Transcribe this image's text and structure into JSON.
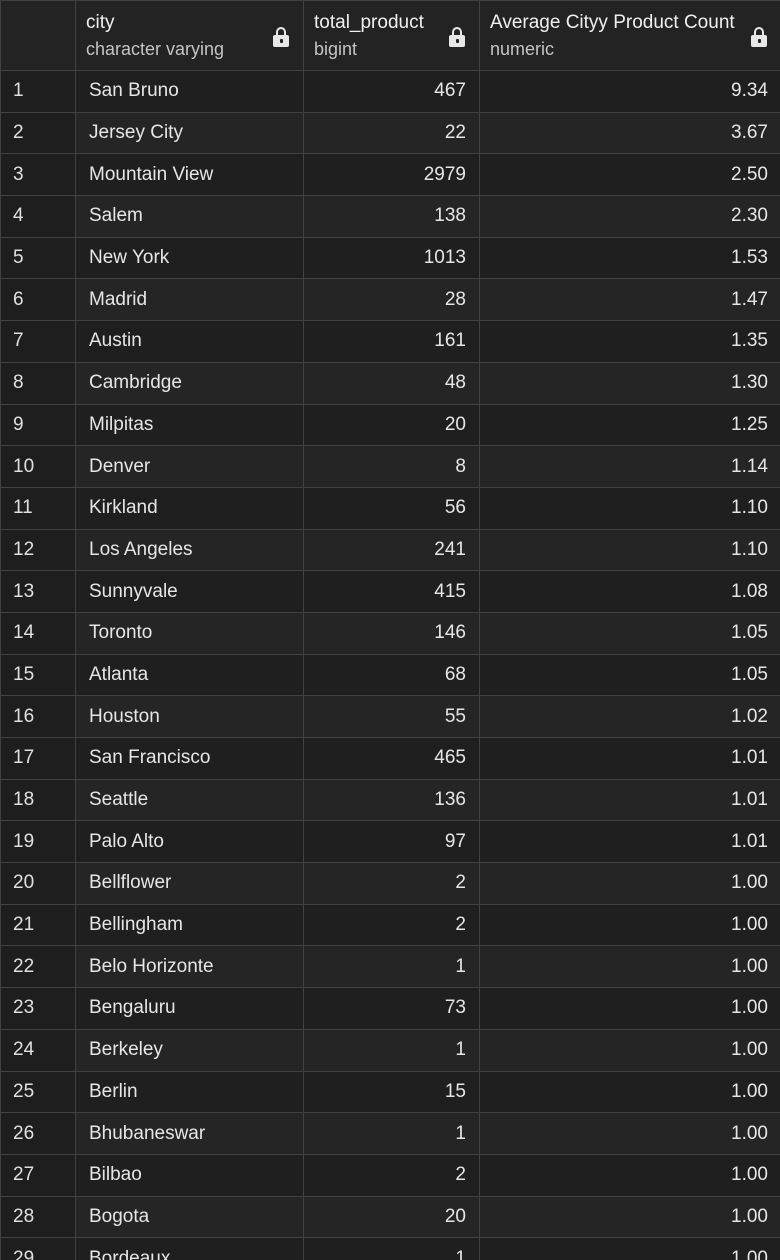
{
  "columns": [
    {
      "name": "city",
      "type": "character varying"
    },
    {
      "name": "total_product",
      "type": "bigint"
    },
    {
      "name": "Average Cityy Product Count",
      "type": "numeric"
    }
  ],
  "rows": [
    {
      "n": "1",
      "city": "San Bruno",
      "total": "467",
      "avg": "9.34"
    },
    {
      "n": "2",
      "city": "Jersey City",
      "total": "22",
      "avg": "3.67"
    },
    {
      "n": "3",
      "city": "Mountain View",
      "total": "2979",
      "avg": "2.50"
    },
    {
      "n": "4",
      "city": "Salem",
      "total": "138",
      "avg": "2.30"
    },
    {
      "n": "5",
      "city": "New York",
      "total": "1013",
      "avg": "1.53"
    },
    {
      "n": "6",
      "city": "Madrid",
      "total": "28",
      "avg": "1.47"
    },
    {
      "n": "7",
      "city": "Austin",
      "total": "161",
      "avg": "1.35"
    },
    {
      "n": "8",
      "city": "Cambridge",
      "total": "48",
      "avg": "1.30"
    },
    {
      "n": "9",
      "city": "Milpitas",
      "total": "20",
      "avg": "1.25"
    },
    {
      "n": "10",
      "city": "Denver",
      "total": "8",
      "avg": "1.14"
    },
    {
      "n": "11",
      "city": "Kirkland",
      "total": "56",
      "avg": "1.10"
    },
    {
      "n": "12",
      "city": "Los Angeles",
      "total": "241",
      "avg": "1.10"
    },
    {
      "n": "13",
      "city": "Sunnyvale",
      "total": "415",
      "avg": "1.08"
    },
    {
      "n": "14",
      "city": "Toronto",
      "total": "146",
      "avg": "1.05"
    },
    {
      "n": "15",
      "city": "Atlanta",
      "total": "68",
      "avg": "1.05"
    },
    {
      "n": "16",
      "city": "Houston",
      "total": "55",
      "avg": "1.02"
    },
    {
      "n": "17",
      "city": "San Francisco",
      "total": "465",
      "avg": "1.01"
    },
    {
      "n": "18",
      "city": "Seattle",
      "total": "136",
      "avg": "1.01"
    },
    {
      "n": "19",
      "city": "Palo Alto",
      "total": "97",
      "avg": "1.01"
    },
    {
      "n": "20",
      "city": "Bellflower",
      "total": "2",
      "avg": "1.00"
    },
    {
      "n": "21",
      "city": "Bellingham",
      "total": "2",
      "avg": "1.00"
    },
    {
      "n": "22",
      "city": "Belo Horizonte",
      "total": "1",
      "avg": "1.00"
    },
    {
      "n": "23",
      "city": "Bengaluru",
      "total": "73",
      "avg": "1.00"
    },
    {
      "n": "24",
      "city": "Berkeley",
      "total": "1",
      "avg": "1.00"
    },
    {
      "n": "25",
      "city": "Berlin",
      "total": "15",
      "avg": "1.00"
    },
    {
      "n": "26",
      "city": "Bhubaneswar",
      "total": "1",
      "avg": "1.00"
    },
    {
      "n": "27",
      "city": "Bilbao",
      "total": "2",
      "avg": "1.00"
    },
    {
      "n": "28",
      "city": "Bogota",
      "total": "20",
      "avg": "1.00"
    },
    {
      "n": "29",
      "city": "Bordeaux",
      "total": "1",
      "avg": "1.00"
    }
  ],
  "icons": {
    "column_lock": "lock-icon"
  }
}
